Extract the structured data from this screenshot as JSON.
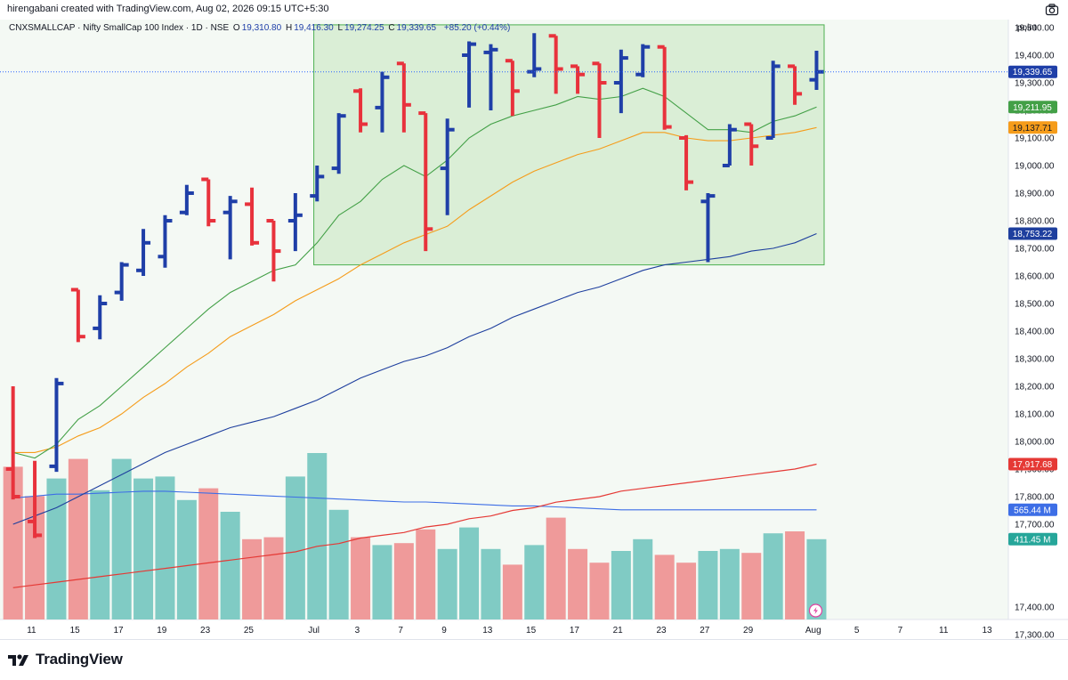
{
  "header": {
    "attribution": "hirengabani created with TradingView.com, Aug 02, 2026 09:15 UTC+5:30"
  },
  "legend": {
    "symbol": "CNXSMALLCAP · Nifty SmallCap 100 Index · 1D · NSE",
    "o_label": "O",
    "o": "19,310.80",
    "h_label": "H",
    "h": "19,416.30",
    "l_label": "L",
    "l": "19,274.25",
    "c_label": "C",
    "c": "19,339.65",
    "change": "+85.20 (+0.44%)"
  },
  "price_scale_mode": "point",
  "brand": {
    "name": "TradingView"
  },
  "colors": {
    "up": "#1f3fa8",
    "down": "#e8323c",
    "vol_up": "#80cbc4",
    "vol_down": "#ef9a9a",
    "ema_fast": "#43a047",
    "ema_mid": "#f59c1a",
    "ma_slow": "#1e3f9e",
    "ma_long": "#e53935",
    "vol_ma": "#3d6ee6",
    "zone_fill": "#d5ecd0",
    "zone_border": "#4caf50",
    "last_line": "#2962ff"
  },
  "chart_data": {
    "type": "ohlc",
    "y_ticks": [
      19500,
      19400,
      19300,
      19200,
      19100,
      19000,
      18900,
      18800,
      18700,
      18600,
      18500,
      18400,
      18300,
      18200,
      18100,
      18000,
      17900,
      17800,
      17700,
      17400,
      17300
    ],
    "y_tick_labels": [
      "19,500.00",
      "19,400.00",
      "19,300.00",
      "19,200.00",
      "19,100.00",
      "19,000.00",
      "18,900.00",
      "18,800.00",
      "18,700.00",
      "18,600.00",
      "18,500.00",
      "18,400.00",
      "18,300.00",
      "18,200.00",
      "18,100.00",
      "18,000.00",
      "17,900.00",
      "17,800.00",
      "17,700.00",
      "17,400.00",
      "17,300.00"
    ],
    "x_ticks": [
      {
        "label": "11",
        "slot": 1
      },
      {
        "label": "15",
        "slot": 3
      },
      {
        "label": "17",
        "slot": 5
      },
      {
        "label": "19",
        "slot": 7
      },
      {
        "label": "23",
        "slot": 9
      },
      {
        "label": "25",
        "slot": 11
      },
      {
        "label": "Jul",
        "slot": 14
      },
      {
        "label": "3",
        "slot": 16
      },
      {
        "label": "7",
        "slot": 18
      },
      {
        "label": "9",
        "slot": 20
      },
      {
        "label": "13",
        "slot": 22
      },
      {
        "label": "15",
        "slot": 24
      },
      {
        "label": "17",
        "slot": 26
      },
      {
        "label": "21",
        "slot": 28
      },
      {
        "label": "23",
        "slot": 30
      },
      {
        "label": "27",
        "slot": 32
      },
      {
        "label": "29",
        "slot": 34
      },
      {
        "label": "Aug",
        "slot": 37
      },
      {
        "label": "5",
        "slot": 39
      },
      {
        "label": "7",
        "slot": 41
      },
      {
        "label": "11",
        "slot": 43
      },
      {
        "label": "13",
        "slot": 45
      }
    ],
    "bars": [
      {
        "o": 17900,
        "h": 18200,
        "l": 17790,
        "c": 17800,
        "vol": 0.78
      },
      {
        "o": 17710,
        "h": 17930,
        "l": 17650,
        "c": 17660,
        "vol": 0.63
      },
      {
        "o": 17910,
        "h": 18230,
        "l": 17890,
        "c": 18210,
        "vol": 0.72
      },
      {
        "o": 18550,
        "h": 18550,
        "l": 18360,
        "c": 18380,
        "vol": 0.82
      },
      {
        "o": 18410,
        "h": 18530,
        "l": 18370,
        "c": 18500,
        "vol": 0.66
      },
      {
        "o": 18540,
        "h": 18650,
        "l": 18510,
        "c": 18640,
        "vol": 0.82
      },
      {
        "o": 18620,
        "h": 18770,
        "l": 18600,
        "c": 18720,
        "vol": 0.72
      },
      {
        "o": 18670,
        "h": 18820,
        "l": 18630,
        "c": 18800,
        "vol": 0.73
      },
      {
        "o": 18830,
        "h": 18930,
        "l": 18820,
        "c": 18900,
        "vol": 0.61
      },
      {
        "o": 18950,
        "h": 18950,
        "l": 18780,
        "c": 18800,
        "vol": 0.67
      },
      {
        "o": 18830,
        "h": 18890,
        "l": 18660,
        "c": 18870,
        "vol": 0.55
      },
      {
        "o": 18860,
        "h": 18920,
        "l": 18710,
        "c": 18720,
        "vol": 0.41
      },
      {
        "o": 18800,
        "h": 18800,
        "l": 18580,
        "c": 18690,
        "vol": 0.42
      },
      {
        "o": 18800,
        "h": 18900,
        "l": 18690,
        "c": 18820,
        "vol": 0.73
      },
      {
        "o": 18890,
        "h": 19000,
        "l": 18870,
        "c": 18960,
        "vol": 0.85
      },
      {
        "o": 18990,
        "h": 19190,
        "l": 18970,
        "c": 19180,
        "vol": 0.56
      },
      {
        "o": 19270,
        "h": 19280,
        "l": 19120,
        "c": 19150,
        "vol": 0.42
      },
      {
        "o": 19210,
        "h": 19340,
        "l": 19120,
        "c": 19320,
        "vol": 0.38
      },
      {
        "o": 19370,
        "h": 19370,
        "l": 19120,
        "c": 19220,
        "vol": 0.39
      },
      {
        "o": 19190,
        "h": 19190,
        "l": 18690,
        "c": 18770,
        "vol": 0.46
      },
      {
        "o": 18990,
        "h": 19170,
        "l": 18820,
        "c": 19130,
        "vol": 0.36
      },
      {
        "o": 19400,
        "h": 19450,
        "l": 19210,
        "c": 19440,
        "vol": 0.47
      },
      {
        "o": 19410,
        "h": 19440,
        "l": 19200,
        "c": 19420,
        "vol": 0.36
      },
      {
        "o": 19380,
        "h": 19380,
        "l": 19180,
        "c": 19270,
        "vol": 0.28
      },
      {
        "o": 19340,
        "h": 19480,
        "l": 19320,
        "c": 19350,
        "vol": 0.38
      },
      {
        "o": 19470,
        "h": 19470,
        "l": 19260,
        "c": 19350,
        "vol": 0.52
      },
      {
        "o": 19360,
        "h": 19360,
        "l": 19260,
        "c": 19330,
        "vol": 0.36
      },
      {
        "o": 19370,
        "h": 19370,
        "l": 19100,
        "c": 19300,
        "vol": 0.29
      },
      {
        "o": 19300,
        "h": 19420,
        "l": 19190,
        "c": 19390,
        "vol": 0.35
      },
      {
        "o": 19330,
        "h": 19440,
        "l": 19320,
        "c": 19430,
        "vol": 0.41
      },
      {
        "o": 19430,
        "h": 19430,
        "l": 19130,
        "c": 19140,
        "vol": 0.33
      },
      {
        "o": 19100,
        "h": 19110,
        "l": 18910,
        "c": 18940,
        "vol": 0.29
      },
      {
        "o": 18870,
        "h": 18900,
        "l": 18650,
        "c": 18890,
        "vol": 0.35
      },
      {
        "o": 19000,
        "h": 19150,
        "l": 19000,
        "c": 19130,
        "vol": 0.36
      },
      {
        "o": 19150,
        "h": 19150,
        "l": 19000,
        "c": 19070,
        "vol": 0.34
      },
      {
        "o": 19100,
        "h": 19380,
        "l": 19100,
        "c": 19360,
        "vol": 0.44
      },
      {
        "o": 19360,
        "h": 19360,
        "l": 19220,
        "c": 19260,
        "vol": 0.45
      },
      {
        "o": 19310.8,
        "h": 19416.3,
        "l": 19274.25,
        "c": 19339.65,
        "vol": 0.41
      }
    ],
    "ema_fast": [
      17960,
      17940,
      17990,
      18080,
      18130,
      18200,
      18270,
      18340,
      18410,
      18480,
      18540,
      18580,
      18620,
      18640,
      18720,
      18820,
      18870,
      18950,
      19000,
      18960,
      19020,
      19100,
      19150,
      19180,
      19200,
      19220,
      19250,
      19240,
      19250,
      19280,
      19250,
      19190,
      19130,
      19130,
      19120,
      19160,
      19180,
      19211.95
    ],
    "ema_mid": [
      17960,
      17960,
      17980,
      18020,
      18050,
      18100,
      18160,
      18210,
      18270,
      18320,
      18380,
      18420,
      18460,
      18510,
      18550,
      18590,
      18640,
      18680,
      18720,
      18750,
      18780,
      18840,
      18890,
      18940,
      18980,
      19010,
      19040,
      19060,
      19090,
      19120,
      19120,
      19100,
      19090,
      19090,
      19100,
      19110,
      19120,
      19137.71
    ],
    "ma_slow": [
      17700,
      17730,
      17760,
      17800,
      17840,
      17880,
      17920,
      17960,
      17990,
      18020,
      18050,
      18070,
      18090,
      18120,
      18150,
      18190,
      18230,
      18260,
      18290,
      18310,
      18340,
      18380,
      18410,
      18450,
      18480,
      18510,
      18540,
      18560,
      18590,
      18620,
      18640,
      18650,
      18660,
      18670,
      18690,
      18700,
      18720,
      18753.22
    ],
    "ma_long": [
      17470,
      17480,
      17490,
      17500,
      17510,
      17520,
      17530,
      17540,
      17550,
      17560,
      17570,
      17580,
      17590,
      17600,
      17620,
      17630,
      17650,
      17660,
      17670,
      17690,
      17700,
      17720,
      17730,
      17750,
      17760,
      17780,
      17790,
      17800,
      17820,
      17830,
      17840,
      17850,
      17860,
      17870,
      17880,
      17890,
      17900,
      17917.68
    ],
    "volume_ma": [
      0.62,
      0.63,
      0.64,
      0.64,
      0.645,
      0.65,
      0.655,
      0.655,
      0.65,
      0.645,
      0.64,
      0.635,
      0.63,
      0.625,
      0.62,
      0.615,
      0.61,
      0.605,
      0.6,
      0.6,
      0.595,
      0.59,
      0.585,
      0.58,
      0.58,
      0.575,
      0.57,
      0.565,
      0.56,
      0.56,
      0.56,
      0.56,
      0.56,
      0.56,
      0.56,
      0.56,
      0.56,
      0.56
    ],
    "zone": {
      "x_from_bar": 14,
      "x_to_bar": 37.5,
      "y_top": 19510,
      "y_bottom": 18640
    },
    "tags": [
      {
        "label": "19,339.65",
        "value": 19339.65,
        "color": "#1f3fa8",
        "text_color": "#ffffff"
      },
      {
        "label": "19,211.95",
        "value": 19211.95,
        "color": "#43a047",
        "text_color": "#ffffff"
      },
      {
        "label": "19,137.71",
        "value": 19137.71,
        "color": "#f59c1a",
        "text_color": "#131722"
      },
      {
        "label": "18,753.22",
        "value": 18753.22,
        "color": "#1e3f9e",
        "text_color": "#ffffff"
      },
      {
        "label": "17,917.68",
        "value": 17917.68,
        "color": "#e53935",
        "text_color": "#ffffff"
      },
      {
        "label": "565.44 M",
        "volume": 0.56,
        "color": "#3d6ee6",
        "text_color": "#ffffff"
      },
      {
        "label": "411.45 M",
        "volume": 0.41,
        "color": "#26a69a",
        "text_color": "#ffffff"
      }
    ],
    "last_price": 19339.65
  }
}
